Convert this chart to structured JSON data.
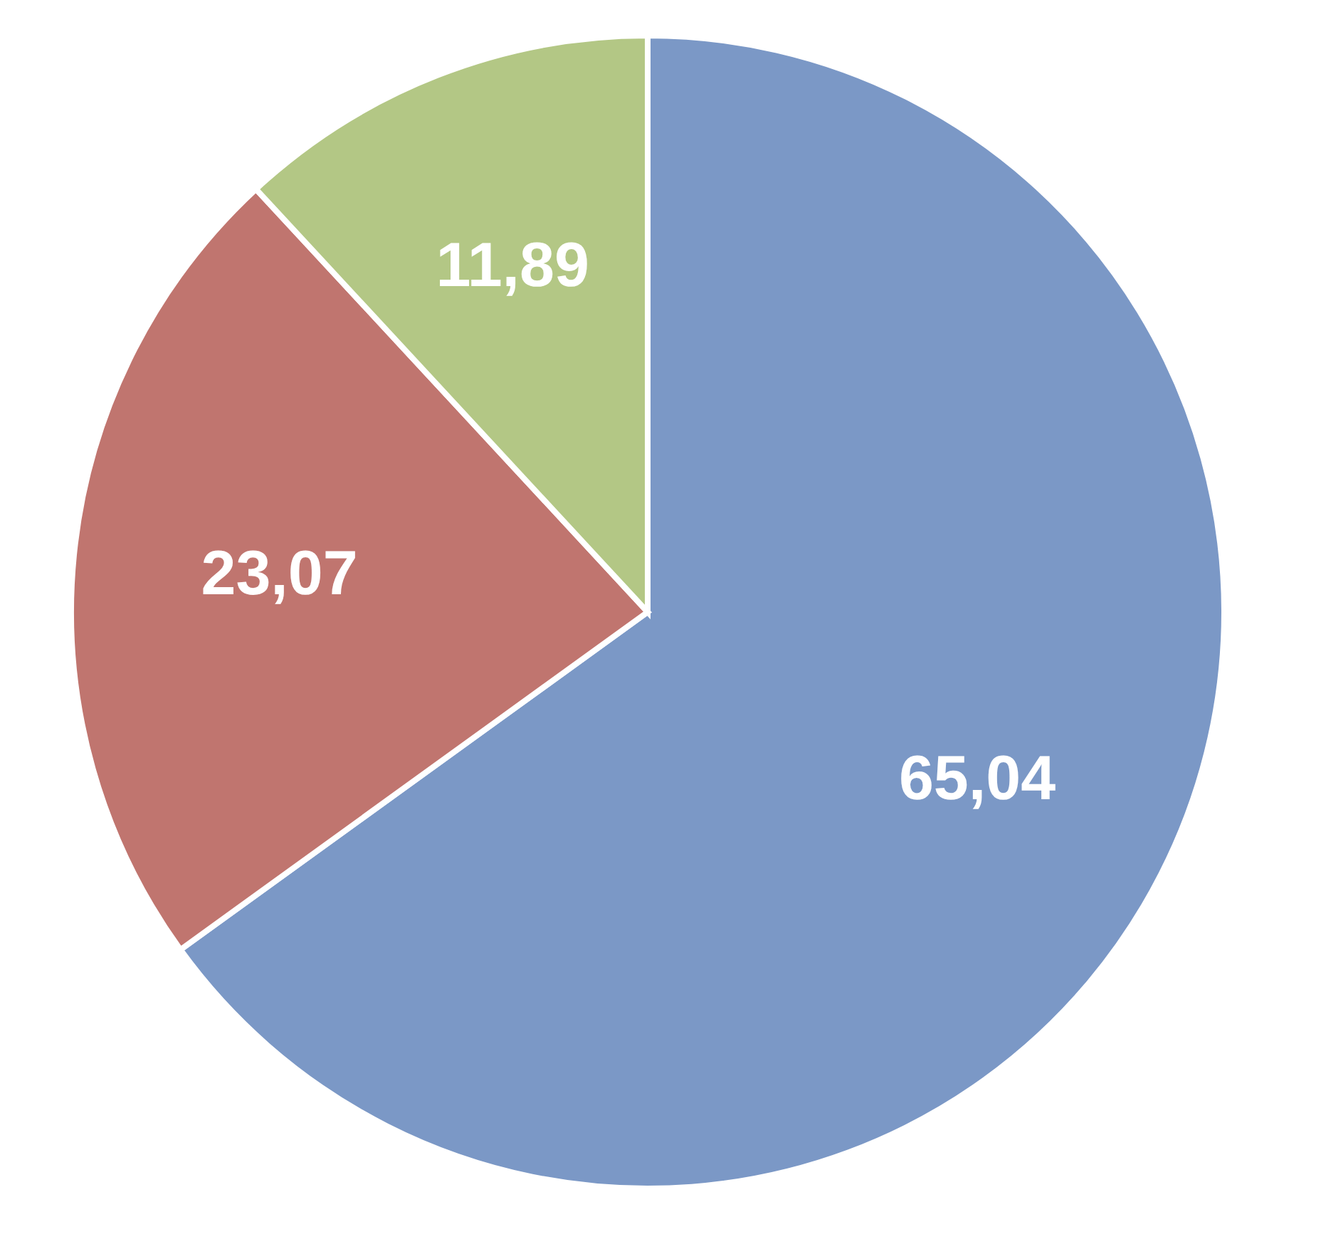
{
  "chart_data": {
    "type": "pie",
    "categories": [
      null,
      null,
      null
    ],
    "values": [
      65.04,
      23.07,
      11.89
    ],
    "colors": [
      "#7b98c6",
      "#c0756f",
      "#b3c785"
    ],
    "value_labels": [
      "65,04",
      "23,07",
      "11,89"
    ],
    "legend": false
  }
}
